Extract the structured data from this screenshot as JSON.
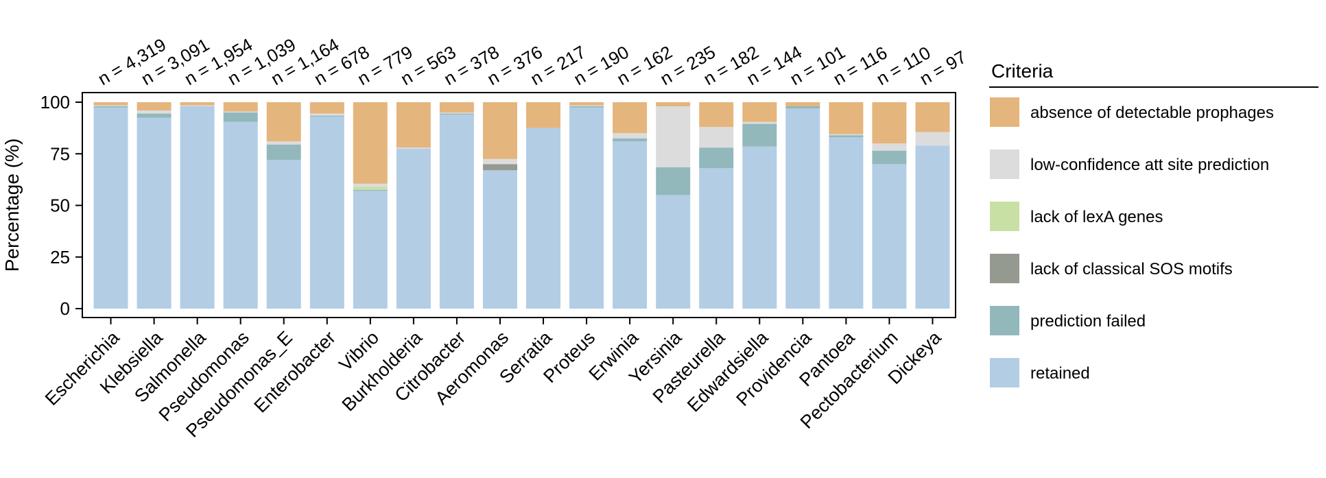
{
  "chart_data": {
    "type": "bar",
    "stacked": true,
    "ylabel": "Percentage (%)",
    "ylim": [
      0,
      100
    ],
    "yticks": [
      0,
      25,
      50,
      75,
      100
    ],
    "grid": false,
    "legend": {
      "title": "Criteria",
      "placement": "right",
      "entries": [
        {
          "label": "absence of detectable prophages",
          "color": "#E5B57E"
        },
        {
          "label": "low-confidence att site prediction",
          "color": "#DCDCDC"
        },
        {
          "label": "lack of lexA genes",
          "color": "#C8E0A4"
        },
        {
          "label": "lack of classical SOS motifs",
          "color": "#949A90"
        },
        {
          "label": "prediction failed",
          "color": "#92B8BC"
        },
        {
          "label": "retained",
          "color": "#B3CDE5"
        }
      ]
    },
    "categories": [
      "Escherichia",
      "Klebsiella",
      "Salmonella",
      "Pseudomonas",
      "Pseudomonas_E",
      "Enterobacter",
      "Vibrio",
      "Burkholderia",
      "Citrobacter",
      "Aeromonas",
      "Serratia",
      "Proteus",
      "Erwinia",
      "Yersinia",
      "Pasteurella",
      "Edwardsiella",
      "Providencia",
      "Pantoea",
      "Pectobacterium",
      "Dickeya"
    ],
    "counts": [
      "n = 4,319",
      "n = 3,091",
      "n = 1,954",
      "n = 1,039",
      "n = 1,164",
      "n = 678",
      "n = 779",
      "n = 563",
      "n = 378",
      "n = 376",
      "n = 217",
      "n = 190",
      "n = 162",
      "n = 235",
      "n = 182",
      "n = 144",
      "n = 101",
      "n = 116",
      "n = 110",
      "n = 97"
    ],
    "series": [
      {
        "name": "retained",
        "color": "#B3CDE5",
        "values": [
          97.5,
          92.5,
          98.0,
          90.5,
          72.0,
          93.0,
          57.0,
          77.5,
          94.0,
          67.0,
          87.5,
          97.5,
          81.0,
          55.0,
          68.0,
          78.5,
          97.0,
          83.0,
          70.0,
          79.0
        ]
      },
      {
        "name": "prediction failed",
        "color": "#92B8BC",
        "values": [
          0.5,
          2.0,
          0,
          4.5,
          7.5,
          0.5,
          0.5,
          0,
          0.5,
          0,
          0,
          0.5,
          1.5,
          13.5,
          10.0,
          11.0,
          1.0,
          1.0,
          6.5,
          0
        ]
      },
      {
        "name": "lack of classical SOS motifs",
        "color": "#949A90",
        "values": [
          0,
          0,
          0,
          0,
          0,
          0,
          0,
          0,
          0,
          3.0,
          0,
          0,
          0,
          0,
          0,
          0,
          0,
          0,
          0,
          0
        ]
      },
      {
        "name": "lack of lexA genes",
        "color": "#C8E0A4",
        "values": [
          0,
          0,
          0,
          0,
          0,
          0,
          1.5,
          0,
          0,
          0,
          0,
          0,
          0,
          0,
          0,
          0,
          0,
          0,
          0,
          0
        ]
      },
      {
        "name": "low-confidence att site prediction",
        "color": "#DCDCDC",
        "values": [
          0.5,
          1.5,
          0.5,
          0.5,
          1.5,
          1.0,
          1.5,
          0.5,
          0.5,
          2.5,
          0,
          0.5,
          2.5,
          29.5,
          10.0,
          1.0,
          0,
          0.5,
          3.5,
          6.5
        ]
      },
      {
        "name": "absence of detectable prophages",
        "color": "#E5B57E",
        "values": [
          1.5,
          4.0,
          1.5,
          4.5,
          19.0,
          5.5,
          39.5,
          22.0,
          5.0,
          27.5,
          12.5,
          1.5,
          15.0,
          2.0,
          12.0,
          9.5,
          2.0,
          15.5,
          20.0,
          14.5
        ]
      }
    ]
  }
}
